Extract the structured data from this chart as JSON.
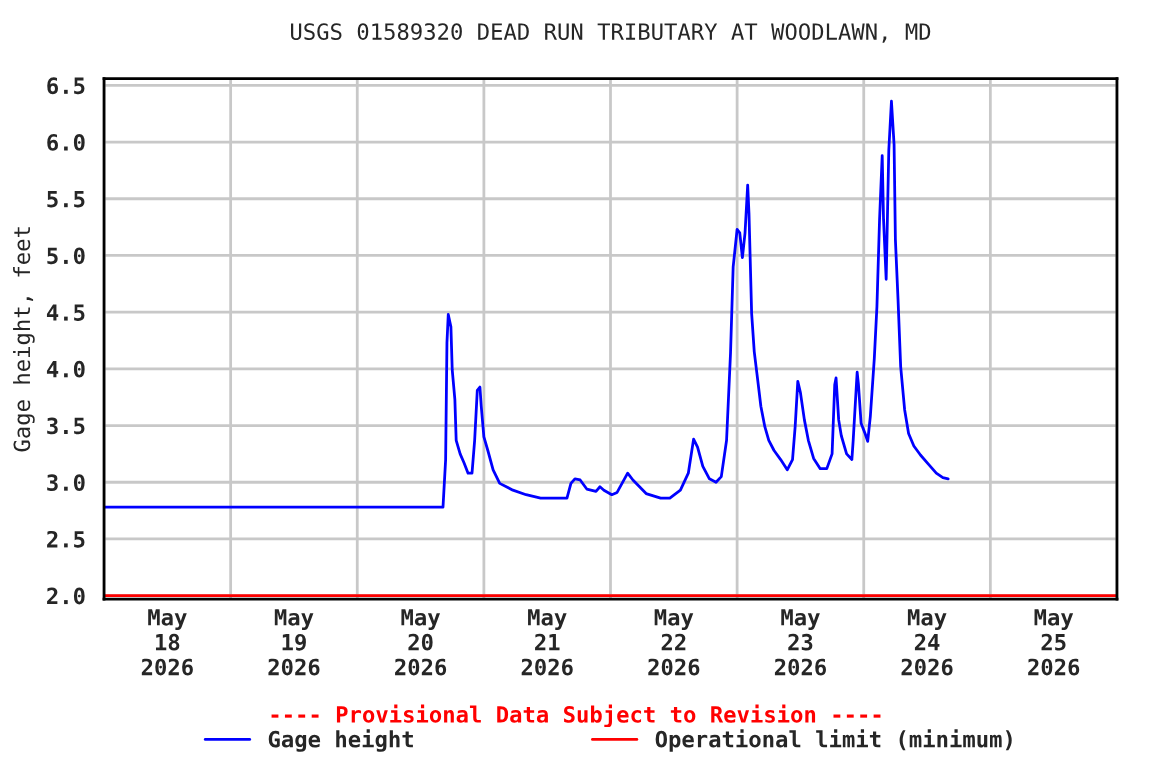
{
  "chart_data": {
    "type": "line",
    "title": "USGS 01589320 DEAD RUN TRIBUTARY AT WOODLAWN, MD",
    "ylabel": "Gage height, feet",
    "annotations": [
      "---- Provisional Data Subject to Revision ----"
    ],
    "xlim": [
      "2026-05-18T00:00",
      "2026-05-26T00:00"
    ],
    "xticks": [
      {
        "value": "2026-05-18T00:00",
        "label": null
      },
      {
        "value": "2026-05-18T12:00",
        "label": "May\n18\n2026"
      },
      {
        "value": "2026-05-19T00:00",
        "label": null
      },
      {
        "value": "2026-05-19T12:00",
        "label": "May\n19\n2026"
      },
      {
        "value": "2026-05-20T00:00",
        "label": null
      },
      {
        "value": "2026-05-20T12:00",
        "label": "May\n20\n2026"
      },
      {
        "value": "2026-05-21T00:00",
        "label": null
      },
      {
        "value": "2026-05-21T12:00",
        "label": "May\n21\n2026"
      },
      {
        "value": "2026-05-22T00:00",
        "label": null
      },
      {
        "value": "2026-05-22T12:00",
        "label": "May\n22\n2026"
      },
      {
        "value": "2026-05-23T00:00",
        "label": null
      },
      {
        "value": "2026-05-23T12:00",
        "label": "May\n23\n2026"
      },
      {
        "value": "2026-05-24T00:00",
        "label": null
      },
      {
        "value": "2026-05-24T12:00",
        "label": "May\n24\n2026"
      },
      {
        "value": "2026-05-25T00:00",
        "label": null
      },
      {
        "value": "2026-05-25T12:00",
        "label": "May\n25\n2026"
      },
      {
        "value": "2026-05-26T00:00",
        "label": null
      }
    ],
    "ylim": [
      1.97,
      6.56
    ],
    "yticks": [
      {
        "value": 2.0,
        "label": "2.0"
      },
      {
        "value": 2.5,
        "label": "2.5"
      },
      {
        "value": 3.0,
        "label": "3.0"
      },
      {
        "value": 3.5,
        "label": "3.5"
      },
      {
        "value": 4.0,
        "label": "4.0"
      },
      {
        "value": 4.5,
        "label": "4.5"
      },
      {
        "value": 5.0,
        "label": "5.0"
      },
      {
        "value": 5.5,
        "label": "5.5"
      },
      {
        "value": 6.0,
        "label": "6.0"
      },
      {
        "value": 6.5,
        "label": "6.5"
      }
    ],
    "grid": true,
    "legend": "bottom",
    "series": [
      {
        "name": "Gage height",
        "color": "#0000ff",
        "x": [
          "2026-05-18T00:00",
          "2026-05-20T16:15",
          "2026-05-20T16:45",
          "2026-05-20T17:00",
          "2026-05-20T17:15",
          "2026-05-20T17:45",
          "2026-05-20T18:00",
          "2026-05-20T18:30",
          "2026-05-20T18:45",
          "2026-05-20T19:30",
          "2026-05-20T20:15",
          "2026-05-20T21:00",
          "2026-05-20T21:45",
          "2026-05-20T22:15",
          "2026-05-20T22:45",
          "2026-05-20T23:15",
          "2026-05-20T23:30",
          "2026-05-21T00:00",
          "2026-05-21T00:45",
          "2026-05-21T01:45",
          "2026-05-21T03:00",
          "2026-05-21T05:30",
          "2026-05-21T08:00",
          "2026-05-21T10:45",
          "2026-05-21T15:45",
          "2026-05-21T16:30",
          "2026-05-21T17:15",
          "2026-05-21T18:15",
          "2026-05-21T19:30",
          "2026-05-21T21:15",
          "2026-05-21T22:00",
          "2026-05-21T22:45",
          "2026-05-22T00:15",
          "2026-05-22T01:15",
          "2026-05-22T03:15",
          "2026-05-22T04:15",
          "2026-05-22T06:45",
          "2026-05-22T09:30",
          "2026-05-22T11:15",
          "2026-05-22T13:15",
          "2026-05-22T14:45",
          "2026-05-22T15:45",
          "2026-05-22T16:30",
          "2026-05-22T17:30",
          "2026-05-22T18:45",
          "2026-05-22T20:00",
          "2026-05-22T21:00",
          "2026-05-22T22:00",
          "2026-05-22T22:45",
          "2026-05-22T23:15",
          "2026-05-23T00:00",
          "2026-05-23T00:30",
          "2026-05-23T01:00",
          "2026-05-23T01:30",
          "2026-05-23T02:00",
          "2026-05-23T02:15",
          "2026-05-23T02:45",
          "2026-05-23T03:15",
          "2026-05-23T03:45",
          "2026-05-23T04:30",
          "2026-05-23T05:15",
          "2026-05-23T06:00",
          "2026-05-23T07:00",
          "2026-05-23T08:15",
          "2026-05-23T09:30",
          "2026-05-23T10:30",
          "2026-05-23T11:00",
          "2026-05-23T11:30",
          "2026-05-23T12:00",
          "2026-05-23T12:45",
          "2026-05-23T13:30",
          "2026-05-23T14:30",
          "2026-05-23T15:45",
          "2026-05-23T17:00",
          "2026-05-23T18:00",
          "2026-05-23T18:30",
          "2026-05-23T18:45",
          "2026-05-23T19:15",
          "2026-05-23T19:45",
          "2026-05-23T20:45",
          "2026-05-23T21:45",
          "2026-05-23T22:00",
          "2026-05-23T22:45",
          "2026-05-23T23:00",
          "2026-05-23T23:30",
          "2026-05-24T00:15",
          "2026-05-24T00:45",
          "2026-05-24T01:15",
          "2026-05-24T02:00",
          "2026-05-24T02:30",
          "2026-05-24T03:00",
          "2026-05-24T03:30",
          "2026-05-24T03:45",
          "2026-05-24T04:15",
          "2026-05-24T04:45",
          "2026-05-24T05:15",
          "2026-05-24T05:45",
          "2026-05-24T06:00",
          "2026-05-24T06:30",
          "2026-05-24T07:00",
          "2026-05-24T07:45",
          "2026-05-24T08:30",
          "2026-05-24T09:30",
          "2026-05-24T10:45",
          "2026-05-24T12:15",
          "2026-05-24T13:45",
          "2026-05-24T15:00",
          "2026-05-24T16:00"
        ],
        "values": [
          2.78,
          2.78,
          3.2,
          4.23,
          4.48,
          4.37,
          3.99,
          3.73,
          3.37,
          3.25,
          3.17,
          3.08,
          3.08,
          3.37,
          3.81,
          3.84,
          3.67,
          3.4,
          3.28,
          3.11,
          2.99,
          2.93,
          2.89,
          2.86,
          2.86,
          2.99,
          3.03,
          3.02,
          2.94,
          2.92,
          2.96,
          2.93,
          2.89,
          2.91,
          3.08,
          3.02,
          2.9,
          2.86,
          2.86,
          2.93,
          3.08,
          3.38,
          3.31,
          3.14,
          3.03,
          3.0,
          3.05,
          3.37,
          4.14,
          4.9,
          5.23,
          5.2,
          4.98,
          5.2,
          5.62,
          5.37,
          4.49,
          4.15,
          3.96,
          3.67,
          3.49,
          3.37,
          3.28,
          3.2,
          3.11,
          3.2,
          3.49,
          3.89,
          3.79,
          3.55,
          3.37,
          3.21,
          3.12,
          3.12,
          3.25,
          3.86,
          3.92,
          3.55,
          3.41,
          3.25,
          3.2,
          3.37,
          3.97,
          3.86,
          3.52,
          3.43,
          3.36,
          3.58,
          4.09,
          4.55,
          5.32,
          5.88,
          5.32,
          4.79,
          5.93,
          6.36,
          5.98,
          5.14,
          4.61,
          4.02,
          3.64,
          3.43,
          3.32,
          3.24,
          3.16,
          3.08,
          3.04,
          3.03
        ]
      },
      {
        "name": "Operational limit (minimum)",
        "color": "#ff0000",
        "x": [
          "2026-05-18T00:00",
          "2026-05-26T00:00"
        ],
        "values": [
          2.0,
          2.0
        ]
      }
    ]
  }
}
